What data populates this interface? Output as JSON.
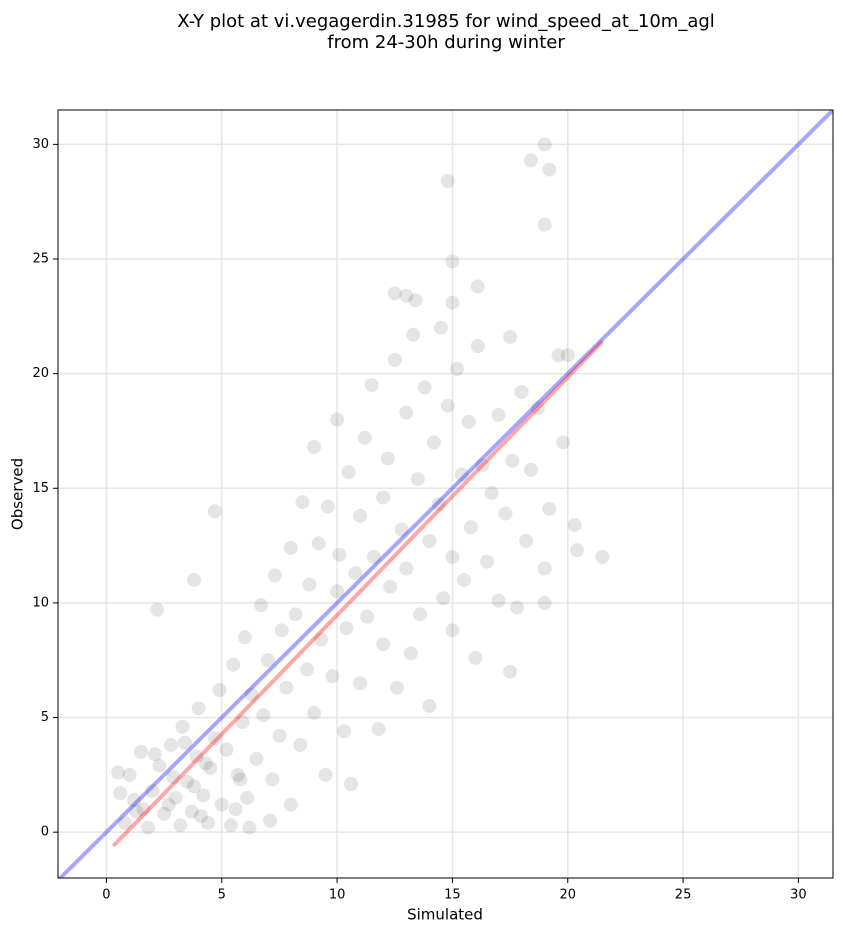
{
  "chart_data": {
    "type": "scatter",
    "title": "X-Y plot at vi.vegagerdin.31985 for wind_speed_at_10m_agl",
    "subtitle": "from 24-30h during winter",
    "x_label": "Simulated",
    "y_label": "Observed",
    "xlim": [
      -2.1,
      31.5
    ],
    "ylim": [
      -2.0,
      31.5
    ],
    "xticks": [
      0,
      5,
      10,
      15,
      20,
      25,
      30
    ],
    "yticks": [
      0,
      5,
      10,
      15,
      20,
      25,
      30
    ],
    "grid": true,
    "color": "#000000",
    "x": [
      0.5,
      0.8,
      1,
      1.2,
      1.5,
      1.8,
      2,
      2.3,
      2.5,
      2.8,
      3,
      3.2,
      3.3,
      3.5,
      3.7,
      3.9,
      4,
      4.2,
      4.4,
      4.5,
      4.7,
      4.9,
      5,
      5.2,
      5.4,
      5.5,
      5.7,
      5.9,
      6,
      6.1,
      6.3,
      6.5,
      6.7,
      6.8,
      7,
      7.2,
      7.3,
      7.5,
      7.6,
      7.8,
      8,
      8,
      8.2,
      8.4,
      8.5,
      8.7,
      8.8,
      9,
      9,
      9.2,
      9.3,
      9.5,
      9.6,
      9.8,
      10,
      10,
      10.1,
      10.3,
      10.4,
      10.5,
      10.6,
      10.8,
      11,
      11,
      11.2,
      11.3,
      11.5,
      11.6,
      11.8,
      12,
      12,
      12.2,
      12.3,
      12.5,
      12.6,
      12.8,
      13,
      13,
      13.2,
      13.3,
      13.5,
      13.6,
      13.8,
      14,
      14,
      14.2,
      14.4,
      14.5,
      14.6,
      14.8,
      15,
      15,
      15.2,
      15.4,
      15.5,
      15.7,
      15.8,
      16,
      16.1,
      16.3,
      16.5,
      16.7,
      17,
      17,
      17.3,
      17.5,
      17.6,
      17.8,
      18,
      18.2,
      18.4,
      18.7,
      19,
      19,
      19.2,
      3.8,
      4.3,
      2.7,
      5.6,
      6.2,
      7.1,
      19,
      18.4,
      19.2,
      14.8,
      19,
      15,
      16.1,
      12.5,
      13,
      13.4,
      15,
      21.5,
      20.3,
      20.4,
      17.5,
      2.2,
      4.7,
      5.8,
      3.8,
      19.8,
      19.6,
      20,
      1.6,
      2.9,
      3.4,
      4.1,
      2.1,
      1.3,
      0.6
    ],
    "y": [
      2.6,
      0.4,
      2.5,
      1.4,
      3.5,
      0.2,
      1.8,
      2.9,
      0.8,
      3.8,
      1.5,
      0.3,
      4.6,
      2.2,
      0.9,
      3.3,
      5.4,
      1.6,
      0.4,
      2.8,
      4.1,
      6.2,
      1.2,
      3.6,
      0.3,
      7.3,
      2.5,
      4.8,
      8.5,
      1.5,
      6,
      3.2,
      9.9,
      5.1,
      7.5,
      2.3,
      11.2,
      4.2,
      8.8,
      6.3,
      12.4,
      1.2,
      9.5,
      3.8,
      14.4,
      7.1,
      10.8,
      5.2,
      16.8,
      12.6,
      8.4,
      2.5,
      14.2,
      6.8,
      10.5,
      18,
      12.1,
      4.4,
      8.9,
      15.7,
      2.1,
      11.3,
      13.8,
      6.5,
      17.2,
      9.4,
      19.5,
      12,
      4.5,
      14.6,
      8.2,
      16.3,
      10.7,
      20.6,
      6.3,
      13.2,
      18.3,
      11.5,
      7.8,
      21.7,
      15.4,
      9.5,
      19.4,
      12.7,
      5.5,
      17,
      14.3,
      22,
      10.2,
      18.6,
      12,
      8.8,
      20.2,
      15.6,
      11,
      17.9,
      13.3,
      7.6,
      21.2,
      16,
      11.8,
      14.8,
      18.2,
      10.1,
      13.9,
      21.6,
      16.2,
      9.8,
      19.2,
      12.7,
      15.8,
      18.5,
      11.5,
      10,
      14.1,
      2,
      3,
      1.2,
      1,
      0.2,
      0.5,
      30,
      29.3,
      28.9,
      28.4,
      26.5,
      24.9,
      23.8,
      23.5,
      23.4,
      23.2,
      23.1,
      12,
      13.4,
      12.3,
      7,
      9.7,
      14,
      2.3,
      11,
      17,
      20.8,
      20.8,
      1,
      2.4,
      3.9,
      0.7,
      3.4,
      0.9,
      1.7
    ],
    "lines": [
      {
        "color": "#0000ff",
        "x": [
          -2.1,
          31.5
        ],
        "y": [
          -2.1,
          31.5
        ]
      },
      {
        "color": "#ff0000",
        "x": [
          0.3,
          21.5
        ],
        "y": [
          -0.6,
          21.4
        ]
      }
    ]
  }
}
